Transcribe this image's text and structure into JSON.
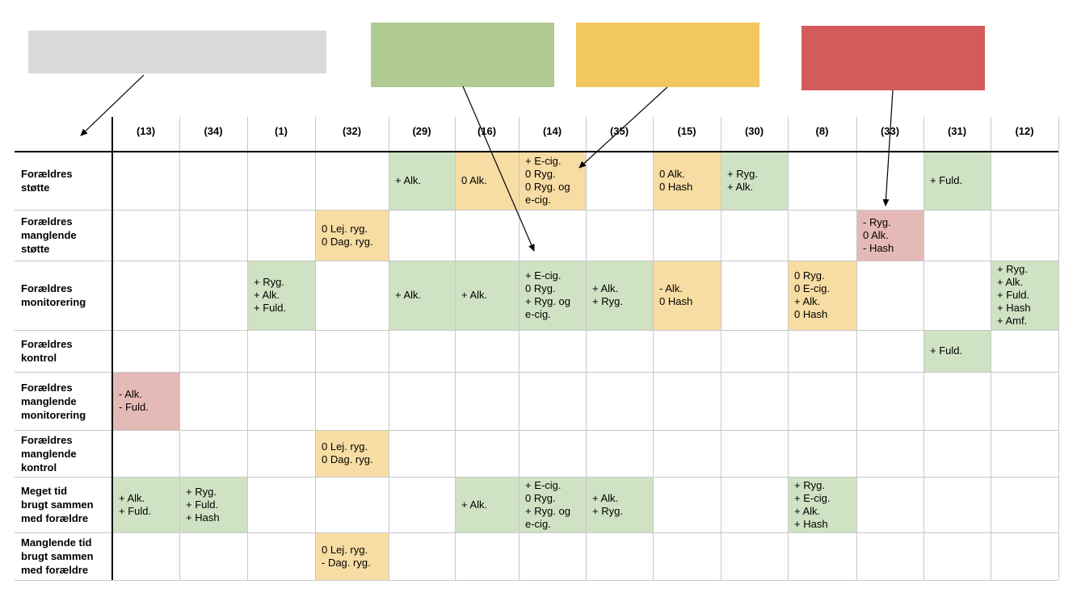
{
  "colors": {
    "gray": "#d9d9d9",
    "green": "#b0cb91",
    "yellow": "#f2c75e",
    "red": "#d35b5b",
    "cell_green": "#cfe2c3",
    "cell_yellow": "#f7dca3",
    "cell_red": "#e5b9b6"
  },
  "legend": [
    {
      "id": "gray",
      "color": "#d9d9d9",
      "text": ""
    },
    {
      "id": "green",
      "color": "#b0cb91",
      "text": ""
    },
    {
      "id": "yellow",
      "color": "#f2c75e",
      "text": ""
    },
    {
      "id": "red",
      "color": "#d35b5b",
      "text": ""
    }
  ],
  "table": {
    "columns": [
      "(13)",
      "(34)",
      "(1)",
      "(32)",
      "(29)",
      "(16)",
      "(14)",
      "(35)",
      "(15)",
      "(30)",
      "(8)",
      "(33)",
      "(31)",
      "(12)"
    ],
    "rows": [
      {
        "label": [
          "Forældres",
          "støtte"
        ],
        "cells": [
          {
            "col": 4,
            "color": "green",
            "lines": [
              "+ Alk."
            ]
          },
          {
            "col": 5,
            "color": "yellow",
            "lines": [
              "0 Alk."
            ]
          },
          {
            "col": 6,
            "color": "yellow",
            "lines": [
              "+ E-cig.",
              "0 Ryg.",
              "0 Ryg. og",
              "e-cig."
            ]
          },
          {
            "col": 8,
            "color": "yellow",
            "lines": [
              "0 Alk.",
              "0 Hash"
            ]
          },
          {
            "col": 9,
            "color": "green",
            "lines": [
              "+ Ryg.",
              "+ Alk."
            ]
          },
          {
            "col": 12,
            "color": "green",
            "lines": [
              "+ Fuld."
            ]
          }
        ]
      },
      {
        "label": [
          "Forældres",
          "manglende",
          "støtte"
        ],
        "cells": [
          {
            "col": 3,
            "color": "yellow",
            "lines": [
              "0 Lej. ryg.",
              "0 Dag. ryg."
            ]
          },
          {
            "col": 11,
            "color": "red",
            "lines": [
              "- Ryg.",
              "0 Alk.",
              "- Hash"
            ]
          }
        ]
      },
      {
        "label": [
          "Forældres",
          "monitorering"
        ],
        "cells": [
          {
            "col": 2,
            "color": "green",
            "lines": [
              "+ Ryg.",
              "+ Alk.",
              "+ Fuld."
            ]
          },
          {
            "col": 4,
            "color": "green",
            "lines": [
              "+ Alk."
            ]
          },
          {
            "col": 5,
            "color": "green",
            "lines": [
              "+ Alk."
            ]
          },
          {
            "col": 6,
            "color": "green",
            "lines": [
              "+ E-cig.",
              "0 Ryg.",
              "+ Ryg. og",
              "e-cig."
            ]
          },
          {
            "col": 7,
            "color": "green",
            "lines": [
              "+ Alk.",
              "+ Ryg."
            ]
          },
          {
            "col": 8,
            "color": "yellow",
            "lines": [
              "- Alk.",
              "0 Hash"
            ]
          },
          {
            "col": 10,
            "color": "yellow",
            "lines": [
              "0 Ryg.",
              "0 E-cig.",
              "+ Alk.",
              "0 Hash"
            ]
          },
          {
            "col": 13,
            "color": "green",
            "lines": [
              "+ Ryg.",
              "+ Alk.",
              "+ Fuld.",
              "+ Hash",
              "+ Amf."
            ]
          }
        ]
      },
      {
        "label": [
          "Forældres",
          "kontrol"
        ],
        "cells": [
          {
            "col": 12,
            "color": "green",
            "lines": [
              "+ Fuld."
            ]
          }
        ]
      },
      {
        "label": [
          "Forældres",
          "manglende",
          "monitorering"
        ],
        "cells": [
          {
            "col": 0,
            "color": "red",
            "lines": [
              "- Alk.",
              "- Fuld."
            ]
          }
        ]
      },
      {
        "label": [
          "Forældres",
          "manglende",
          "kontrol"
        ],
        "cells": [
          {
            "col": 3,
            "color": "yellow",
            "lines": [
              "0 Lej. ryg.",
              "0 Dag. ryg."
            ]
          }
        ]
      },
      {
        "label": [
          "Meget tid",
          "brugt sammen",
          "med forældre"
        ],
        "cells": [
          {
            "col": 0,
            "color": "green",
            "lines": [
              "+ Alk.",
              "+ Fuld."
            ]
          },
          {
            "col": 1,
            "color": "green",
            "lines": [
              "+ Ryg.",
              "+ Fuld.",
              "+ Hash"
            ]
          },
          {
            "col": 5,
            "color": "green",
            "lines": [
              "+ Alk."
            ]
          },
          {
            "col": 6,
            "color": "green",
            "lines": [
              "+ E-cig.",
              "0 Ryg.",
              "+ Ryg. og",
              "e-cig."
            ]
          },
          {
            "col": 7,
            "color": "green",
            "lines": [
              "+ Alk.",
              "+ Ryg."
            ]
          },
          {
            "col": 10,
            "color": "green",
            "lines": [
              "+ Ryg.",
              "+ E-cig.",
              "+ Alk.",
              "+ Hash"
            ]
          }
        ]
      },
      {
        "label": [
          "Manglende tid",
          "brugt sammen",
          "med forældre"
        ],
        "cells": [
          {
            "col": 3,
            "color": "yellow",
            "lines": [
              "0 Lej. ryg.",
              "- Dag. ryg."
            ]
          }
        ]
      }
    ]
  }
}
